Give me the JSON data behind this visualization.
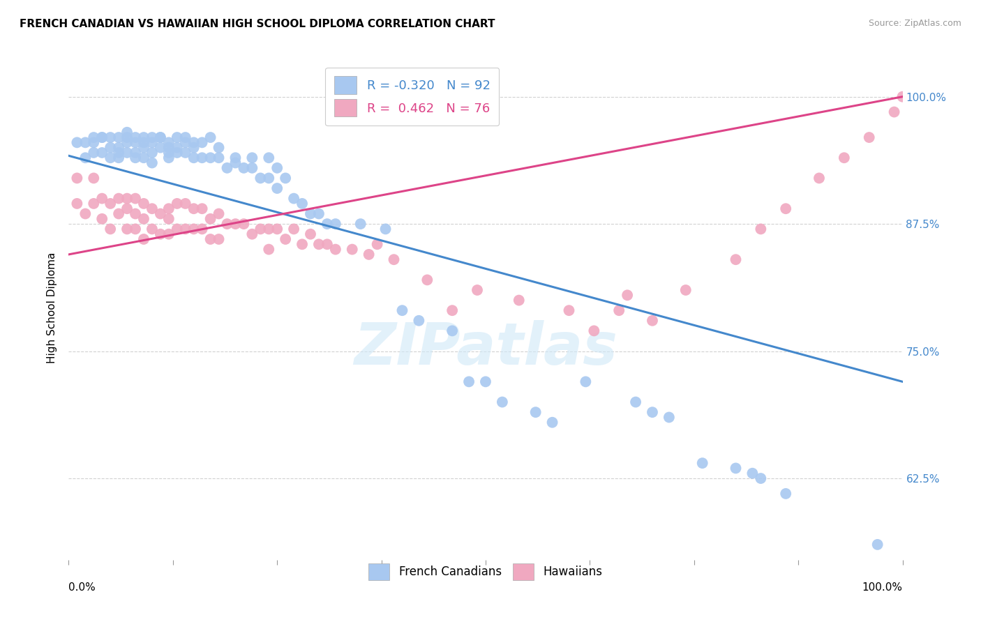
{
  "title": "FRENCH CANADIAN VS HAWAIIAN HIGH SCHOOL DIPLOMA CORRELATION CHART",
  "source": "Source: ZipAtlas.com",
  "ylabel": "High School Diploma",
  "ytick_labels": [
    "62.5%",
    "75.0%",
    "87.5%",
    "100.0%"
  ],
  "ytick_values": [
    0.625,
    0.75,
    0.875,
    1.0
  ],
  "xlim": [
    0.0,
    1.0
  ],
  "ylim": [
    0.545,
    1.04
  ],
  "legend_blue_R": "-0.320",
  "legend_blue_N": "92",
  "legend_pink_R": "0.462",
  "legend_pink_N": "76",
  "blue_color": "#a8c8f0",
  "pink_color": "#f0a8c0",
  "blue_line_color": "#4488cc",
  "pink_line_color": "#dd4488",
  "watermark_text": "ZIPatlas",
  "blue_line_start_y": 0.942,
  "blue_line_end_y": 0.72,
  "pink_line_start_y": 0.845,
  "pink_line_end_y": 1.0,
  "blue_scatter_x": [
    0.01,
    0.02,
    0.02,
    0.03,
    0.03,
    0.03,
    0.04,
    0.04,
    0.04,
    0.05,
    0.05,
    0.05,
    0.06,
    0.06,
    0.06,
    0.06,
    0.07,
    0.07,
    0.07,
    0.07,
    0.08,
    0.08,
    0.08,
    0.08,
    0.09,
    0.09,
    0.09,
    0.09,
    0.1,
    0.1,
    0.1,
    0.1,
    0.11,
    0.11,
    0.11,
    0.12,
    0.12,
    0.12,
    0.12,
    0.13,
    0.13,
    0.13,
    0.14,
    0.14,
    0.14,
    0.15,
    0.15,
    0.15,
    0.16,
    0.16,
    0.17,
    0.17,
    0.18,
    0.18,
    0.19,
    0.2,
    0.2,
    0.21,
    0.22,
    0.22,
    0.23,
    0.24,
    0.24,
    0.25,
    0.25,
    0.26,
    0.27,
    0.28,
    0.29,
    0.3,
    0.31,
    0.32,
    0.35,
    0.38,
    0.4,
    0.42,
    0.46,
    0.48,
    0.5,
    0.52,
    0.56,
    0.58,
    0.62,
    0.68,
    0.7,
    0.72,
    0.76,
    0.8,
    0.82,
    0.83,
    0.86,
    0.97
  ],
  "blue_scatter_y": [
    0.955,
    0.955,
    0.94,
    0.955,
    0.945,
    0.96,
    0.96,
    0.96,
    0.945,
    0.94,
    0.96,
    0.95,
    0.96,
    0.95,
    0.945,
    0.94,
    0.965,
    0.96,
    0.955,
    0.945,
    0.96,
    0.955,
    0.945,
    0.94,
    0.96,
    0.955,
    0.95,
    0.94,
    0.96,
    0.955,
    0.945,
    0.935,
    0.96,
    0.96,
    0.95,
    0.955,
    0.95,
    0.945,
    0.94,
    0.96,
    0.95,
    0.945,
    0.96,
    0.955,
    0.945,
    0.955,
    0.95,
    0.94,
    0.955,
    0.94,
    0.96,
    0.94,
    0.95,
    0.94,
    0.93,
    0.94,
    0.935,
    0.93,
    0.94,
    0.93,
    0.92,
    0.94,
    0.92,
    0.93,
    0.91,
    0.92,
    0.9,
    0.895,
    0.885,
    0.885,
    0.875,
    0.875,
    0.875,
    0.87,
    0.79,
    0.78,
    0.77,
    0.72,
    0.72,
    0.7,
    0.69,
    0.68,
    0.72,
    0.7,
    0.69,
    0.685,
    0.64,
    0.635,
    0.63,
    0.625,
    0.61,
    0.56
  ],
  "pink_scatter_x": [
    0.01,
    0.01,
    0.02,
    0.03,
    0.03,
    0.04,
    0.04,
    0.05,
    0.05,
    0.06,
    0.06,
    0.07,
    0.07,
    0.07,
    0.08,
    0.08,
    0.08,
    0.09,
    0.09,
    0.09,
    0.1,
    0.1,
    0.11,
    0.11,
    0.12,
    0.12,
    0.12,
    0.13,
    0.13,
    0.14,
    0.14,
    0.15,
    0.15,
    0.16,
    0.16,
    0.17,
    0.17,
    0.18,
    0.18,
    0.19,
    0.2,
    0.21,
    0.22,
    0.23,
    0.24,
    0.24,
    0.25,
    0.26,
    0.27,
    0.28,
    0.29,
    0.3,
    0.31,
    0.32,
    0.34,
    0.36,
    0.37,
    0.39,
    0.43,
    0.46,
    0.49,
    0.54,
    0.6,
    0.63,
    0.66,
    0.67,
    0.7,
    0.74,
    0.8,
    0.83,
    0.86,
    0.9,
    0.93,
    0.96,
    0.99,
    1.0
  ],
  "pink_scatter_y": [
    0.92,
    0.895,
    0.885,
    0.92,
    0.895,
    0.9,
    0.88,
    0.895,
    0.87,
    0.9,
    0.885,
    0.9,
    0.89,
    0.87,
    0.9,
    0.885,
    0.87,
    0.895,
    0.88,
    0.86,
    0.89,
    0.87,
    0.885,
    0.865,
    0.89,
    0.88,
    0.865,
    0.895,
    0.87,
    0.895,
    0.87,
    0.89,
    0.87,
    0.89,
    0.87,
    0.88,
    0.86,
    0.885,
    0.86,
    0.875,
    0.875,
    0.875,
    0.865,
    0.87,
    0.87,
    0.85,
    0.87,
    0.86,
    0.87,
    0.855,
    0.865,
    0.855,
    0.855,
    0.85,
    0.85,
    0.845,
    0.855,
    0.84,
    0.82,
    0.79,
    0.81,
    0.8,
    0.79,
    0.77,
    0.79,
    0.805,
    0.78,
    0.81,
    0.84,
    0.87,
    0.89,
    0.92,
    0.94,
    0.96,
    0.985,
    1.0
  ]
}
